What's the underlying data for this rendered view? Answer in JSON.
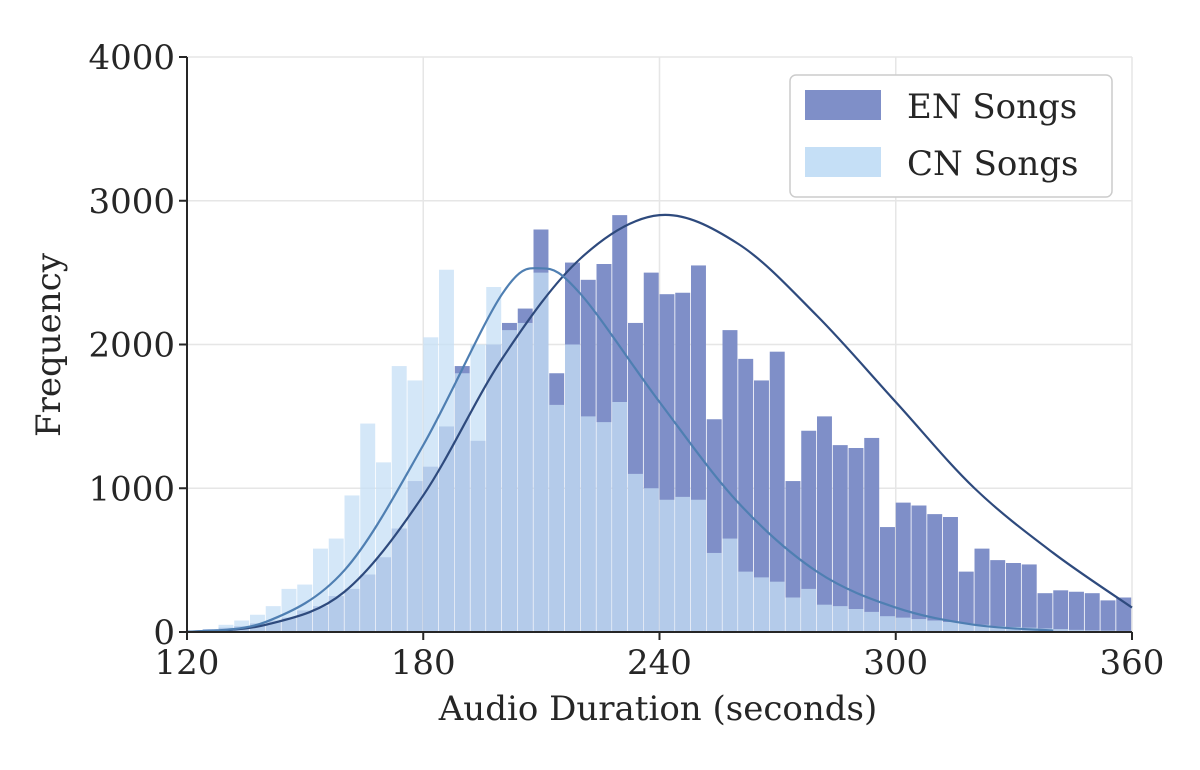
{
  "chart_data": {
    "type": "bar",
    "title": "",
    "xlabel": "Audio Duration (seconds)",
    "ylabel": "Frequency",
    "xlim": [
      120,
      360
    ],
    "ylim": [
      0,
      4000
    ],
    "xticks": [
      120,
      180,
      240,
      300,
      360
    ],
    "yticks": [
      0,
      1000,
      2000,
      3000,
      4000
    ],
    "grid": true,
    "legend_position": "top-right",
    "bin_width": 4,
    "bin_start": 120,
    "series": [
      {
        "name": "EN Songs",
        "color": "#7f8fc8",
        "curve_color": "#2e4a7d",
        "values": [
          10,
          20,
          30,
          40,
          60,
          80,
          100,
          150,
          180,
          250,
          300,
          400,
          520,
          720,
          1050,
          1150,
          1430,
          1850,
          1330,
          2000,
          2150,
          2250,
          2800,
          1800,
          2570,
          2450,
          2560,
          2900,
          2150,
          2500,
          2350,
          2360,
          2550,
          1480,
          2100,
          1900,
          1750,
          1950,
          1050,
          1400,
          1500,
          1300,
          1280,
          1350,
          730,
          900,
          880,
          820,
          800,
          420,
          580,
          500,
          480,
          470,
          270,
          290,
          280,
          270,
          220,
          240
        ]
      },
      {
        "name": "CN Songs",
        "color": "#c5dff6",
        "curve_color": "#4f7fb2",
        "values": [
          10,
          20,
          50,
          80,
          120,
          180,
          300,
          330,
          580,
          650,
          950,
          1450,
          1180,
          1850,
          1750,
          2050,
          2520,
          1800,
          2000,
          2400,
          2100,
          2150,
          2500,
          1580,
          2000,
          1500,
          1460,
          1600,
          1100,
          1000,
          920,
          940,
          920,
          550,
          650,
          420,
          380,
          350,
          240,
          300,
          190,
          180,
          160,
          140,
          110,
          100,
          90,
          80,
          70,
          60,
          50,
          40,
          35,
          30,
          25,
          20,
          15,
          12,
          10,
          8
        ]
      }
    ],
    "fit_curves": [
      {
        "series": "EN Songs",
        "x": [
          120,
          140,
          160,
          180,
          200,
          220,
          240,
          260,
          280,
          300,
          320,
          340,
          360
        ],
        "y": [
          0,
          50,
          280,
          950,
          1900,
          2600,
          2900,
          2700,
          2200,
          1600,
          1000,
          550,
          170
        ]
      },
      {
        "series": "CN Songs",
        "x": [
          120,
          140,
          160,
          180,
          200,
          210,
          220,
          240,
          260,
          280,
          300,
          320,
          340
        ],
        "y": [
          0,
          70,
          430,
          1300,
          2350,
          2530,
          2350,
          1600,
          900,
          420,
          170,
          50,
          10
        ]
      }
    ]
  }
}
